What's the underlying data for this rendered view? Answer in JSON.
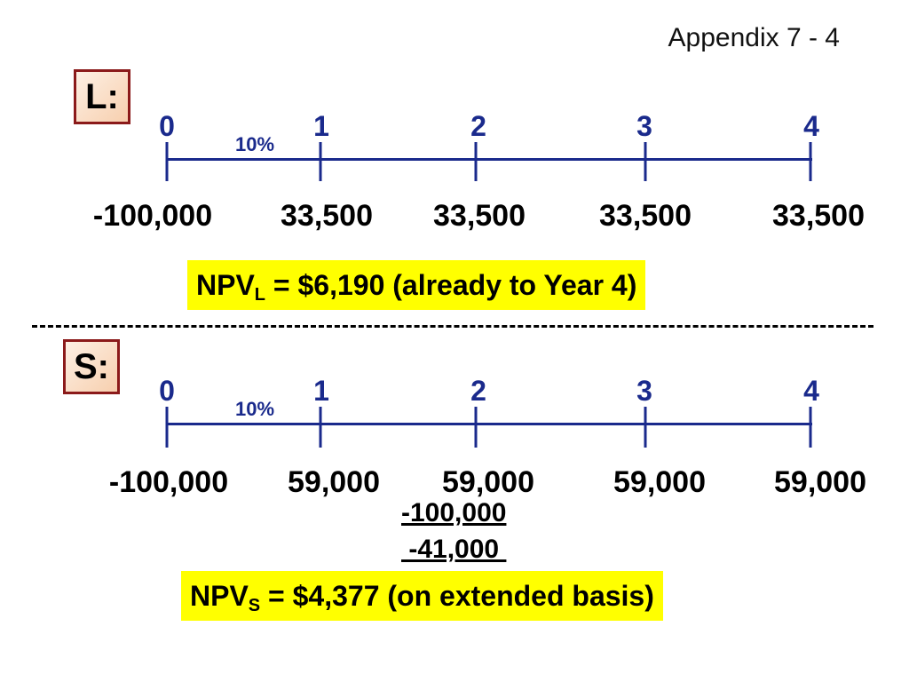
{
  "header": {
    "title": "Appendix 7 - 4"
  },
  "project_l": {
    "label": "L:",
    "periods": [
      "0",
      "1",
      "2",
      "3",
      "4"
    ],
    "rate": "10%",
    "cash_flows": [
      "-100,000",
      "33,500",
      "33,500",
      "33,500",
      "33,500"
    ],
    "npv": {
      "prefix": "NPV",
      "subscript": "L",
      "text": " = $6,190 (already to Year 4)"
    }
  },
  "project_s": {
    "label": "S:",
    "periods": [
      "0",
      "1",
      "2",
      "3",
      "4"
    ],
    "rate": "10%",
    "cash_flows": [
      "-100,000",
      "59,000",
      "59,000",
      "59,000",
      "59,000"
    ],
    "reinvestment": {
      "cost": "-100,000",
      "net": " -41,000 "
    },
    "npv": {
      "prefix": "NPV",
      "subscript": "S",
      "text": " = $4,377 (on extended basis)"
    }
  },
  "colors": {
    "timeline": "#1a2a8c",
    "highlight": "#ffff00",
    "box_border": "#8b1a1a"
  }
}
